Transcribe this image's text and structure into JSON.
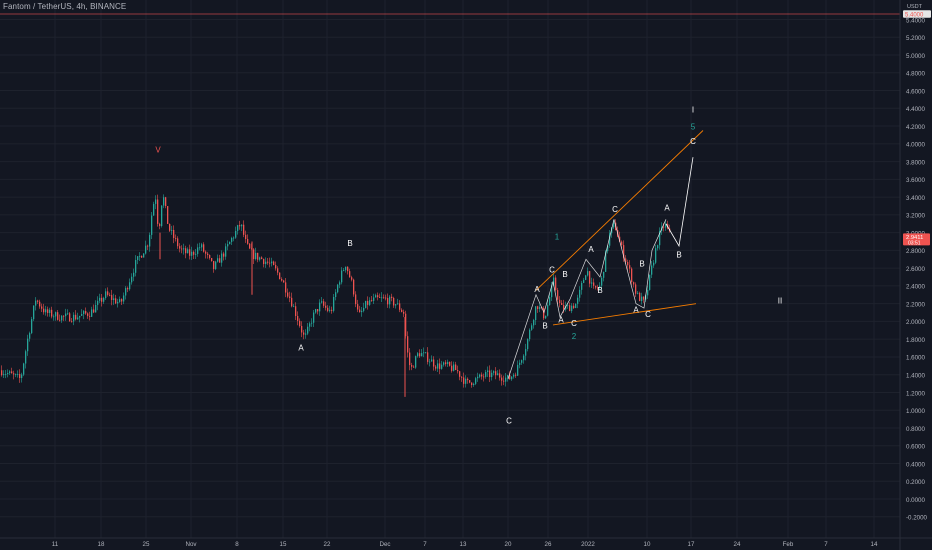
{
  "header": {
    "title": "Fantom / TetherUS, 4h, BINANCE"
  },
  "colors": {
    "background": "#131722",
    "grid": "#1e222d",
    "axis_text": "#b2b5be",
    "candle_up": "#26a69a",
    "candle_down": "#ef5350",
    "wave_line": "#ffffff",
    "trend_line": "#f57c00",
    "wave_label": "#ffffff",
    "wave_label_teal": "#26a69a",
    "wave_label_red": "#ef5350",
    "price_tag_bg": "#ef5350",
    "alert_line": "#ef5350"
  },
  "chart_data": {
    "type": "candlestick",
    "title": "Fantom / TetherUS, 4h, BINANCE",
    "y_axis": {
      "unit": "USDT",
      "ylim": [
        -0.2,
        5.6
      ],
      "ticks": [
        "5.4000",
        "5.2000",
        "5.0000",
        "4.8000",
        "4.6000",
        "4.4000",
        "4.2000",
        "4.0000",
        "3.8000",
        "3.6000",
        "3.4000",
        "3.2000",
        "3.0000",
        "2.8000",
        "2.6000",
        "2.4000",
        "2.2000",
        "2.0000",
        "1.8000",
        "1.6000",
        "1.4000",
        "1.2000",
        "1.0000",
        "0.8000",
        "0.6000",
        "0.4000",
        "0.2000",
        "0.0000",
        "-0.2000"
      ]
    },
    "x_axis": {
      "ticks": [
        "11",
        "18",
        "25",
        "Nov",
        "8",
        "15",
        "22",
        "Dec",
        "7",
        "13",
        "20",
        "26",
        "2022",
        "10",
        "17",
        "24",
        "Feb",
        "7",
        "14"
      ]
    },
    "current_price": {
      "value": "2.9411",
      "sub": "03:51"
    },
    "alert_price": "5.4000",
    "price_path": [
      [
        0,
        1.45
      ],
      [
        20,
        1.35
      ],
      [
        27,
        1.8
      ],
      [
        35,
        2.25
      ],
      [
        45,
        2.1
      ],
      [
        60,
        2.05
      ],
      [
        75,
        2.05
      ],
      [
        90,
        2.1
      ],
      [
        105,
        2.3
      ],
      [
        120,
        2.2
      ],
      [
        135,
        2.65
      ],
      [
        148,
        2.9
      ],
      [
        152,
        3.3
      ],
      [
        155,
        3.4
      ],
      [
        158,
        3.0
      ],
      [
        162,
        3.45
      ],
      [
        168,
        3.05
      ],
      [
        180,
        2.8
      ],
      [
        190,
        2.75
      ],
      [
        200,
        2.85
      ],
      [
        213,
        2.6
      ],
      [
        225,
        2.8
      ],
      [
        232,
        2.95
      ],
      [
        240,
        3.1
      ],
      [
        246,
        2.85
      ],
      [
        252,
        2.75
      ],
      [
        262,
        2.7
      ],
      [
        272,
        2.62
      ],
      [
        280,
        2.5
      ],
      [
        290,
        2.25
      ],
      [
        298,
        2.0
      ],
      [
        304,
        1.8
      ],
      [
        312,
        2.05
      ],
      [
        320,
        2.2
      ],
      [
        330,
        2.1
      ],
      [
        338,
        2.45
      ],
      [
        345,
        2.65
      ],
      [
        352,
        2.4
      ],
      [
        358,
        2.05
      ],
      [
        366,
        2.2
      ],
      [
        375,
        2.25
      ],
      [
        385,
        2.25
      ],
      [
        395,
        2.2
      ],
      [
        403,
        2.1
      ],
      [
        406,
        1.7
      ],
      [
        410,
        1.45
      ],
      [
        418,
        1.65
      ],
      [
        426,
        1.6
      ],
      [
        436,
        1.5
      ],
      [
        446,
        1.5
      ],
      [
        456,
        1.45
      ],
      [
        466,
        1.3
      ],
      [
        476,
        1.35
      ],
      [
        486,
        1.4
      ],
      [
        496,
        1.4
      ],
      [
        508,
        1.35
      ],
      [
        516,
        1.45
      ],
      [
        526,
        1.75
      ],
      [
        536,
        2.2
      ],
      [
        544,
        2.05
      ],
      [
        553,
        2.45
      ],
      [
        560,
        2.15
      ],
      [
        566,
        2.15
      ],
      [
        576,
        2.2
      ],
      [
        586,
        2.6
      ],
      [
        592,
        2.35
      ],
      [
        600,
        2.4
      ],
      [
        608,
        2.95
      ],
      [
        614,
        3.1
      ],
      [
        620,
        2.85
      ],
      [
        628,
        2.6
      ],
      [
        636,
        2.3
      ],
      [
        644,
        2.2
      ],
      [
        652,
        2.65
      ],
      [
        658,
        2.95
      ],
      [
        664,
        3.1
      ],
      [
        670,
        2.95
      ]
    ],
    "volatility_cues": [
      [
        160,
        2.7,
        3.0
      ],
      [
        252,
        2.9,
        2.3
      ],
      [
        405,
        2.05,
        1.15
      ]
    ],
    "projected_path": [
      [
        666,
        3.1
      ],
      [
        679,
        2.85
      ],
      [
        693,
        3.85
      ]
    ],
    "wave_path": [
      [
        508,
        1.35
      ],
      [
        536,
        2.3
      ],
      [
        544,
        2.1
      ],
      [
        553,
        2.45
      ],
      [
        560,
        2.05
      ],
      [
        570,
        2.25
      ],
      [
        586,
        2.7
      ],
      [
        600,
        2.5
      ],
      [
        614,
        3.15
      ],
      [
        636,
        2.2
      ],
      [
        644,
        2.15
      ],
      [
        652,
        2.8
      ],
      [
        666,
        3.15
      ]
    ],
    "trendlines": [
      {
        "from": [
          536,
          2.35
        ],
        "to": [
          703,
          4.15
        ]
      },
      {
        "from": [
          553,
          1.96
        ],
        "to": [
          696,
          2.2
        ]
      }
    ],
    "wave_labels": [
      {
        "text": "V",
        "x": 158,
        "y": 3.9,
        "style": "red"
      },
      {
        "text": "B",
        "x": 350,
        "y": 2.85,
        "style": "white"
      },
      {
        "text": "A",
        "x": 301,
        "y": 1.67,
        "style": "white"
      },
      {
        "text": "C",
        "x": 509,
        "y": 0.85,
        "style": "white"
      },
      {
        "text": "1",
        "x": 557,
        "y": 2.92,
        "style": "teal"
      },
      {
        "text": "2",
        "x": 574,
        "y": 1.8,
        "style": "teal"
      },
      {
        "text": "A",
        "x": 537,
        "y": 2.33,
        "style": "white"
      },
      {
        "text": "B",
        "x": 545,
        "y": 1.92,
        "style": "white"
      },
      {
        "text": "C",
        "x": 552,
        "y": 2.55,
        "style": "white"
      },
      {
        "text": "B",
        "x": 565,
        "y": 2.5,
        "style": "white"
      },
      {
        "text": "A",
        "x": 561,
        "y": 1.99,
        "style": "white"
      },
      {
        "text": "C",
        "x": 574,
        "y": 1.95,
        "style": "white"
      },
      {
        "text": "A",
        "x": 591,
        "y": 2.78,
        "style": "white"
      },
      {
        "text": "B",
        "x": 600,
        "y": 2.32,
        "style": "white"
      },
      {
        "text": "C",
        "x": 615,
        "y": 3.23,
        "style": "white"
      },
      {
        "text": "B",
        "x": 642,
        "y": 2.62,
        "style": "white"
      },
      {
        "text": "A",
        "x": 636,
        "y": 2.1,
        "style": "white"
      },
      {
        "text": "C",
        "x": 648,
        "y": 2.05,
        "style": "white"
      },
      {
        "text": "A",
        "x": 667,
        "y": 3.25,
        "style": "white"
      },
      {
        "text": "B",
        "x": 679,
        "y": 2.72,
        "style": "white"
      },
      {
        "text": "I",
        "x": 693,
        "y": 4.35,
        "style": "white"
      },
      {
        "text": "5",
        "x": 693,
        "y": 4.16,
        "style": "teal"
      },
      {
        "text": "C",
        "x": 693,
        "y": 4.0,
        "style": "white"
      },
      {
        "text": "II",
        "x": 780,
        "y": 2.2,
        "style": "white"
      }
    ]
  }
}
